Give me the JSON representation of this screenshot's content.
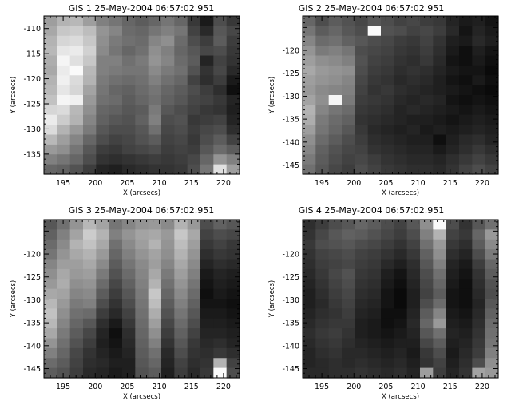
{
  "figure": {
    "background": "#ffffff",
    "axis_color": "#000000"
  },
  "chart_data": [
    {
      "type": "heatmap",
      "title": "GIS 1 25-May-2004 06:57:02.951",
      "xlabel": "X (arcsecs)",
      "ylabel": "Y (arcsecs)",
      "xlim": [
        192,
        222.5
      ],
      "ylim": [
        -139,
        -107.5
      ],
      "xticks": [
        195,
        200,
        205,
        210,
        215,
        220
      ],
      "yticks": [
        -135,
        -130,
        -125,
        -120,
        -115,
        -110
      ],
      "colormap": "grayscale",
      "columns": 15,
      "rows": 16,
      "grid": false,
      "intensity": [
        [
          0.62,
          0.7,
          0.72,
          0.62,
          0.5,
          0.46,
          0.4,
          0.36,
          0.4,
          0.46,
          0.4,
          0.22,
          0.1,
          0.3,
          0.22
        ],
        [
          0.66,
          0.78,
          0.8,
          0.74,
          0.58,
          0.52,
          0.42,
          0.4,
          0.46,
          0.5,
          0.46,
          0.26,
          0.16,
          0.34,
          0.28
        ],
        [
          0.7,
          0.84,
          0.86,
          0.78,
          0.56,
          0.48,
          0.44,
          0.42,
          0.52,
          0.56,
          0.42,
          0.3,
          0.24,
          0.36,
          0.24
        ],
        [
          0.72,
          0.9,
          0.92,
          0.82,
          0.54,
          0.46,
          0.4,
          0.44,
          0.56,
          0.5,
          0.4,
          0.34,
          0.28,
          0.3,
          0.22
        ],
        [
          0.68,
          0.96,
          0.88,
          0.78,
          0.5,
          0.5,
          0.44,
          0.48,
          0.58,
          0.52,
          0.42,
          0.36,
          0.14,
          0.26,
          0.2
        ],
        [
          0.66,
          0.92,
          0.98,
          0.72,
          0.5,
          0.48,
          0.46,
          0.46,
          0.54,
          0.48,
          0.44,
          0.32,
          0.2,
          0.28,
          0.16
        ],
        [
          0.7,
          0.94,
          0.86,
          0.7,
          0.48,
          0.44,
          0.42,
          0.44,
          0.5,
          0.44,
          0.4,
          0.26,
          0.18,
          0.24,
          0.1
        ],
        [
          0.72,
          0.9,
          0.84,
          0.64,
          0.46,
          0.4,
          0.38,
          0.42,
          0.46,
          0.4,
          0.36,
          0.3,
          0.24,
          0.18,
          0.06
        ],
        [
          0.76,
          0.96,
          0.94,
          0.6,
          0.44,
          0.42,
          0.36,
          0.4,
          0.44,
          0.38,
          0.34,
          0.28,
          0.26,
          0.22,
          0.14
        ],
        [
          0.84,
          0.86,
          0.72,
          0.56,
          0.4,
          0.38,
          0.34,
          0.36,
          0.48,
          0.34,
          0.3,
          0.26,
          0.22,
          0.2,
          0.12
        ],
        [
          0.92,
          0.8,
          0.7,
          0.52,
          0.38,
          0.34,
          0.32,
          0.38,
          0.5,
          0.3,
          0.32,
          0.22,
          0.24,
          0.26,
          0.14
        ],
        [
          0.86,
          0.7,
          0.6,
          0.48,
          0.34,
          0.3,
          0.3,
          0.34,
          0.44,
          0.28,
          0.3,
          0.24,
          0.28,
          0.3,
          0.18
        ],
        [
          0.72,
          0.62,
          0.52,
          0.4,
          0.3,
          0.26,
          0.28,
          0.32,
          0.36,
          0.26,
          0.28,
          0.22,
          0.3,
          0.36,
          0.26
        ],
        [
          0.6,
          0.56,
          0.46,
          0.34,
          0.24,
          0.22,
          0.26,
          0.28,
          0.3,
          0.24,
          0.26,
          0.24,
          0.34,
          0.42,
          0.36
        ],
        [
          0.5,
          0.46,
          0.4,
          0.3,
          0.2,
          0.18,
          0.2,
          0.22,
          0.24,
          0.22,
          0.24,
          0.28,
          0.4,
          0.58,
          0.5
        ],
        [
          0.4,
          0.38,
          0.32,
          0.24,
          0.14,
          0.12,
          0.16,
          0.18,
          0.2,
          0.2,
          0.22,
          0.3,
          0.46,
          0.88,
          0.62
        ]
      ]
    },
    {
      "type": "heatmap",
      "title": "GIS 2 25-May-2004 06:57:02.951",
      "xlabel": "X (arcsecs)",
      "ylabel": "Y (arcsecs)",
      "xlim": [
        192,
        222.5
      ],
      "ylim": [
        -147,
        -112.5
      ],
      "xticks": [
        195,
        200,
        205,
        210,
        215,
        220
      ],
      "yticks": [
        -145,
        -140,
        -135,
        -130,
        -125,
        -120
      ],
      "colormap": "grayscale",
      "columns": 15,
      "rows": 16,
      "grid": false,
      "intensity": [
        [
          0.4,
          0.3,
          0.36,
          0.32,
          0.28,
          0.34,
          0.3,
          0.26,
          0.28,
          0.24,
          0.22,
          0.14,
          0.1,
          0.12,
          0.08
        ],
        [
          0.46,
          0.36,
          0.4,
          0.34,
          0.3,
          0.98,
          0.32,
          0.3,
          0.26,
          0.28,
          0.24,
          0.16,
          0.08,
          0.14,
          0.1
        ],
        [
          0.52,
          0.42,
          0.44,
          0.38,
          0.34,
          0.3,
          0.28,
          0.24,
          0.22,
          0.26,
          0.2,
          0.12,
          0.1,
          0.16,
          0.12
        ],
        [
          0.58,
          0.48,
          0.5,
          0.46,
          0.3,
          0.28,
          0.26,
          0.22,
          0.2,
          0.24,
          0.18,
          0.1,
          0.06,
          0.12,
          0.08
        ],
        [
          0.62,
          0.56,
          0.54,
          0.5,
          0.32,
          0.26,
          0.24,
          0.2,
          0.18,
          0.22,
          0.16,
          0.08,
          0.06,
          0.1,
          0.06
        ],
        [
          0.66,
          0.6,
          0.58,
          0.56,
          0.3,
          0.24,
          0.22,
          0.18,
          0.2,
          0.18,
          0.14,
          0.1,
          0.08,
          0.08,
          0.04
        ],
        [
          0.62,
          0.58,
          0.56,
          0.52,
          0.28,
          0.22,
          0.2,
          0.16,
          0.18,
          0.16,
          0.12,
          0.08,
          0.06,
          0.1,
          0.06
        ],
        [
          0.6,
          0.54,
          0.52,
          0.5,
          0.26,
          0.2,
          0.22,
          0.18,
          0.16,
          0.14,
          0.12,
          0.1,
          0.08,
          0.06,
          0.04
        ],
        [
          0.64,
          0.56,
          0.96,
          0.48,
          0.24,
          0.22,
          0.2,
          0.16,
          0.14,
          0.16,
          0.14,
          0.08,
          0.06,
          0.08,
          0.06
        ],
        [
          0.7,
          0.52,
          0.46,
          0.42,
          0.22,
          0.2,
          0.18,
          0.14,
          0.16,
          0.14,
          0.12,
          0.1,
          0.08,
          0.1,
          0.08
        ],
        [
          0.68,
          0.48,
          0.42,
          0.38,
          0.2,
          0.18,
          0.16,
          0.14,
          0.12,
          0.12,
          0.1,
          0.08,
          0.1,
          0.12,
          0.1
        ],
        [
          0.62,
          0.46,
          0.4,
          0.34,
          0.22,
          0.16,
          0.14,
          0.12,
          0.14,
          0.1,
          0.12,
          0.1,
          0.12,
          0.14,
          0.12
        ],
        [
          0.56,
          0.42,
          0.36,
          0.3,
          0.24,
          0.18,
          0.16,
          0.14,
          0.12,
          0.12,
          0.06,
          0.12,
          0.16,
          0.18,
          0.14
        ],
        [
          0.52,
          0.38,
          0.32,
          0.28,
          0.26,
          0.2,
          0.18,
          0.16,
          0.14,
          0.14,
          0.1,
          0.14,
          0.18,
          0.22,
          0.18
        ],
        [
          0.48,
          0.36,
          0.3,
          0.26,
          0.28,
          0.24,
          0.2,
          0.18,
          0.16,
          0.16,
          0.14,
          0.18,
          0.22,
          0.26,
          0.22
        ],
        [
          0.44,
          0.34,
          0.28,
          0.24,
          0.3,
          0.26,
          0.22,
          0.2,
          0.18,
          0.18,
          0.16,
          0.2,
          0.26,
          0.3,
          0.26
        ]
      ]
    },
    {
      "type": "heatmap",
      "title": "GIS 3 25-May-2004 06:57:02.951",
      "xlabel": "X (arcsecs)",
      "ylabel": "Y (arcsecs)",
      "xlim": [
        192,
        222.5
      ],
      "ylim": [
        -147,
        -112.5
      ],
      "xticks": [
        195,
        200,
        205,
        210,
        215,
        220
      ],
      "yticks": [
        -145,
        -140,
        -135,
        -130,
        -125,
        -120
      ],
      "colormap": "grayscale",
      "columns": 15,
      "rows": 16,
      "grid": false,
      "intensity": [
        [
          0.34,
          0.44,
          0.58,
          0.72,
          0.64,
          0.46,
          0.52,
          0.58,
          0.6,
          0.54,
          0.7,
          0.6,
          0.3,
          0.38,
          0.34
        ],
        [
          0.38,
          0.5,
          0.64,
          0.8,
          0.7,
          0.5,
          0.58,
          0.64,
          0.66,
          0.6,
          0.78,
          0.66,
          0.26,
          0.3,
          0.28
        ],
        [
          0.42,
          0.54,
          0.7,
          0.76,
          0.66,
          0.44,
          0.54,
          0.62,
          0.7,
          0.58,
          0.74,
          0.62,
          0.22,
          0.26,
          0.22
        ],
        [
          0.46,
          0.58,
          0.66,
          0.7,
          0.6,
          0.4,
          0.5,
          0.58,
          0.64,
          0.56,
          0.7,
          0.58,
          0.18,
          0.22,
          0.2
        ],
        [
          0.52,
          0.62,
          0.62,
          0.66,
          0.54,
          0.36,
          0.46,
          0.54,
          0.62,
          0.52,
          0.66,
          0.54,
          0.14,
          0.18,
          0.16
        ],
        [
          0.56,
          0.66,
          0.6,
          0.62,
          0.48,
          0.32,
          0.42,
          0.52,
          0.66,
          0.48,
          0.62,
          0.5,
          0.1,
          0.14,
          0.12
        ],
        [
          0.6,
          0.68,
          0.56,
          0.58,
          0.42,
          0.28,
          0.38,
          0.5,
          0.7,
          0.44,
          0.58,
          0.46,
          0.08,
          0.12,
          0.1
        ],
        [
          0.66,
          0.64,
          0.52,
          0.54,
          0.36,
          0.24,
          0.34,
          0.48,
          0.78,
          0.4,
          0.54,
          0.42,
          0.06,
          0.1,
          0.08
        ],
        [
          0.72,
          0.6,
          0.48,
          0.5,
          0.3,
          0.2,
          0.3,
          0.46,
          0.74,
          0.36,
          0.5,
          0.38,
          0.08,
          0.08,
          0.06
        ],
        [
          0.76,
          0.56,
          0.44,
          0.42,
          0.24,
          0.16,
          0.26,
          0.44,
          0.68,
          0.32,
          0.46,
          0.34,
          0.1,
          0.1,
          0.08
        ],
        [
          0.72,
          0.52,
          0.4,
          0.34,
          0.18,
          0.1,
          0.22,
          0.42,
          0.62,
          0.28,
          0.42,
          0.3,
          0.12,
          0.12,
          0.1
        ],
        [
          0.66,
          0.48,
          0.36,
          0.28,
          0.14,
          0.06,
          0.18,
          0.4,
          0.56,
          0.24,
          0.38,
          0.26,
          0.14,
          0.14,
          0.12
        ],
        [
          0.58,
          0.44,
          0.32,
          0.24,
          0.12,
          0.08,
          0.16,
          0.38,
          0.5,
          0.2,
          0.34,
          0.22,
          0.16,
          0.18,
          0.14
        ],
        [
          0.5,
          0.4,
          0.28,
          0.2,
          0.14,
          0.1,
          0.14,
          0.36,
          0.44,
          0.16,
          0.3,
          0.2,
          0.18,
          0.22,
          0.18
        ],
        [
          0.42,
          0.36,
          0.26,
          0.18,
          0.16,
          0.12,
          0.12,
          0.34,
          0.4,
          0.14,
          0.26,
          0.18,
          0.2,
          0.7,
          0.26
        ],
        [
          0.36,
          0.32,
          0.24,
          0.16,
          0.14,
          0.1,
          0.12,
          0.32,
          0.36,
          0.12,
          0.24,
          0.16,
          0.22,
          0.98,
          0.3
        ]
      ]
    },
    {
      "type": "heatmap",
      "title": "GIS 4 25-May-2004 06:57:02.951",
      "xlabel": "X (arcsecs)",
      "ylabel": "Y (arcsecs)",
      "xlim": [
        192,
        222.5
      ],
      "ylim": [
        -147,
        -112.5
      ],
      "xticks": [
        195,
        200,
        205,
        210,
        215,
        220
      ],
      "yticks": [
        -145,
        -140,
        -135,
        -130,
        -125,
        -120
      ],
      "colormap": "grayscale",
      "columns": 15,
      "rows": 16,
      "grid": false,
      "intensity": [
        [
          0.18,
          0.24,
          0.3,
          0.34,
          0.4,
          0.36,
          0.3,
          0.26,
          0.34,
          0.56,
          0.98,
          0.3,
          0.2,
          0.34,
          0.44
        ],
        [
          0.2,
          0.28,
          0.34,
          0.38,
          0.36,
          0.32,
          0.28,
          0.24,
          0.3,
          0.5,
          0.7,
          0.26,
          0.22,
          0.4,
          0.6
        ],
        [
          0.22,
          0.3,
          0.32,
          0.34,
          0.3,
          0.28,
          0.24,
          0.2,
          0.26,
          0.44,
          0.6,
          0.22,
          0.18,
          0.36,
          0.54
        ],
        [
          0.2,
          0.26,
          0.28,
          0.3,
          0.26,
          0.24,
          0.2,
          0.16,
          0.22,
          0.38,
          0.56,
          0.18,
          0.14,
          0.3,
          0.48
        ],
        [
          0.18,
          0.24,
          0.26,
          0.28,
          0.24,
          0.22,
          0.16,
          0.12,
          0.18,
          0.34,
          0.5,
          0.14,
          0.1,
          0.24,
          0.4
        ],
        [
          0.16,
          0.22,
          0.28,
          0.32,
          0.22,
          0.2,
          0.12,
          0.08,
          0.16,
          0.3,
          0.44,
          0.12,
          0.08,
          0.2,
          0.36
        ],
        [
          0.14,
          0.2,
          0.26,
          0.3,
          0.2,
          0.18,
          0.1,
          0.06,
          0.14,
          0.28,
          0.4,
          0.1,
          0.06,
          0.18,
          0.32
        ],
        [
          0.12,
          0.18,
          0.24,
          0.28,
          0.18,
          0.16,
          0.08,
          0.04,
          0.12,
          0.26,
          0.36,
          0.08,
          0.06,
          0.16,
          0.3
        ],
        [
          0.12,
          0.16,
          0.22,
          0.26,
          0.16,
          0.14,
          0.08,
          0.04,
          0.12,
          0.3,
          0.42,
          0.08,
          0.06,
          0.14,
          0.34
        ],
        [
          0.14,
          0.18,
          0.2,
          0.24,
          0.14,
          0.12,
          0.06,
          0.06,
          0.14,
          0.36,
          0.52,
          0.1,
          0.08,
          0.16,
          0.38
        ],
        [
          0.16,
          0.2,
          0.22,
          0.22,
          0.12,
          0.1,
          0.06,
          0.08,
          0.16,
          0.4,
          0.6,
          0.12,
          0.1,
          0.18,
          0.42
        ],
        [
          0.18,
          0.22,
          0.24,
          0.2,
          0.12,
          0.1,
          0.08,
          0.1,
          0.14,
          0.34,
          0.44,
          0.14,
          0.12,
          0.2,
          0.44
        ],
        [
          0.16,
          0.2,
          0.22,
          0.18,
          0.14,
          0.12,
          0.1,
          0.12,
          0.12,
          0.28,
          0.36,
          0.12,
          0.14,
          0.22,
          0.46
        ],
        [
          0.14,
          0.18,
          0.2,
          0.16,
          0.16,
          0.14,
          0.12,
          0.14,
          0.1,
          0.22,
          0.3,
          0.1,
          0.16,
          0.24,
          0.5
        ],
        [
          0.14,
          0.16,
          0.18,
          0.16,
          0.18,
          0.16,
          0.14,
          0.16,
          0.12,
          0.2,
          0.26,
          0.12,
          0.18,
          0.3,
          0.56
        ],
        [
          0.16,
          0.16,
          0.18,
          0.18,
          0.2,
          0.18,
          0.16,
          0.18,
          0.14,
          0.62,
          0.24,
          0.14,
          0.2,
          0.64,
          0.6
        ]
      ]
    }
  ]
}
